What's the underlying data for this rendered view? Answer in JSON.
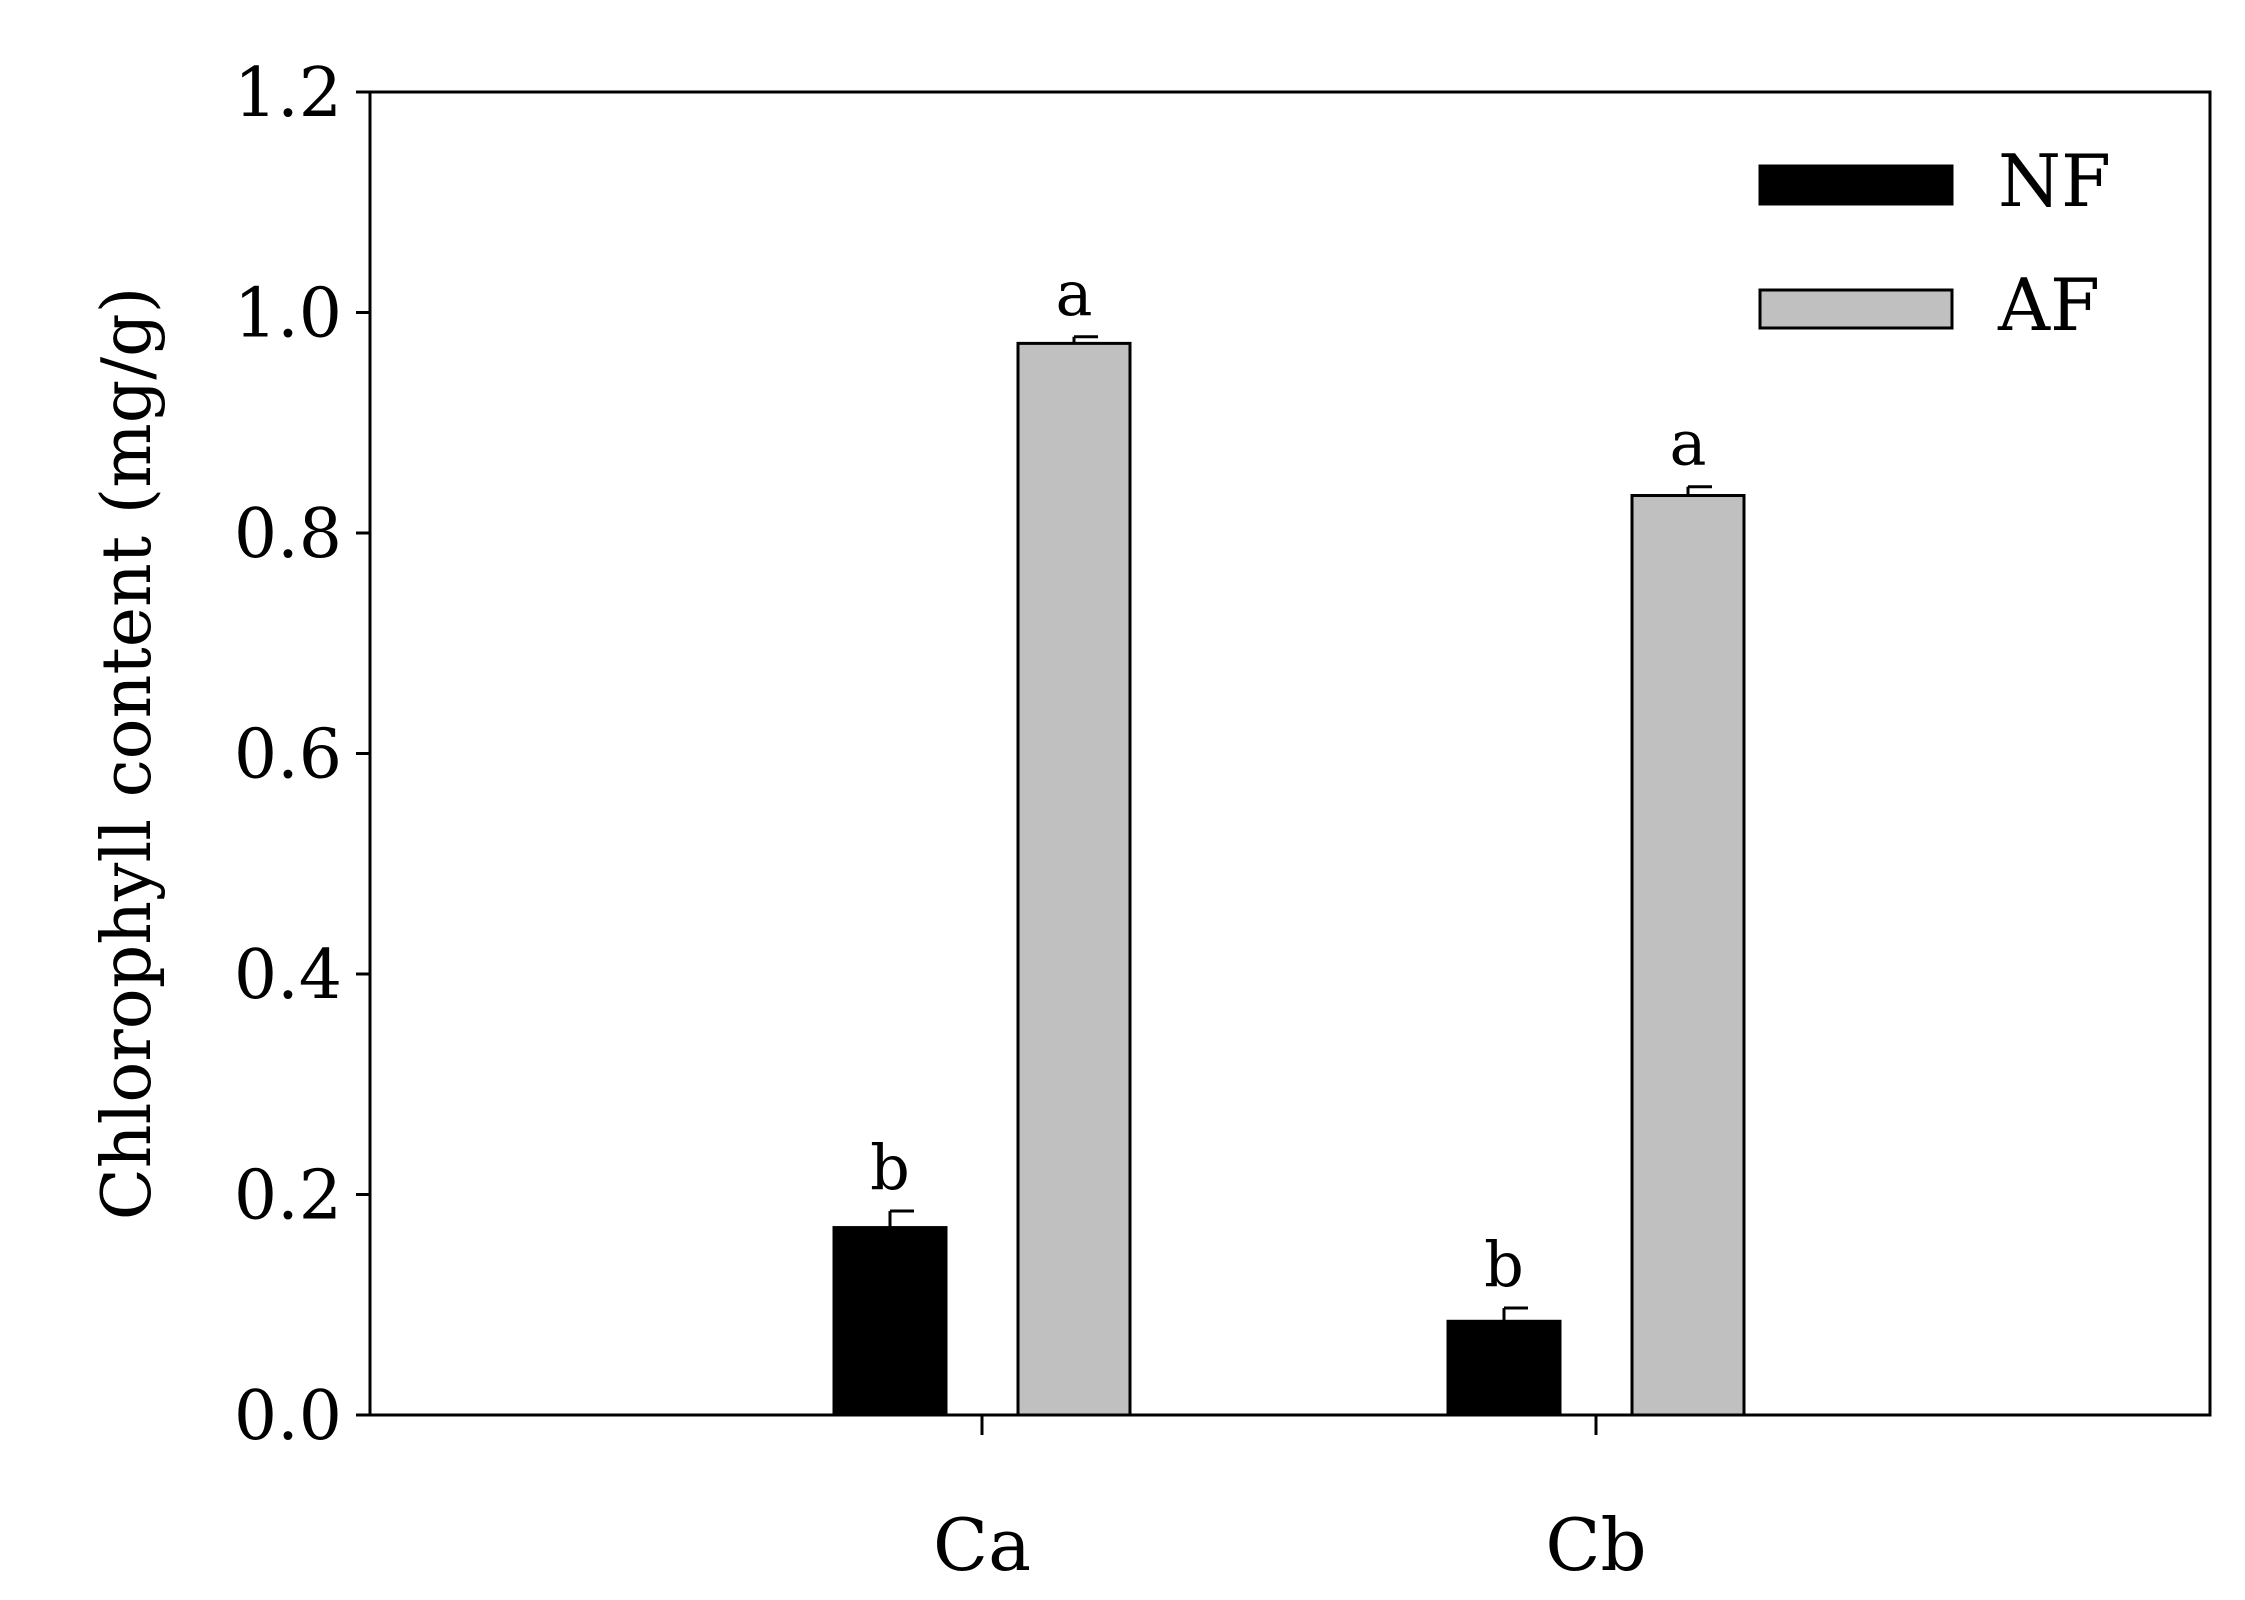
{
  "chart_data": {
    "type": "bar",
    "categories": [
      "Ca",
      "Cb"
    ],
    "series": [
      {
        "name": "NF",
        "color": "#000000",
        "values": [
          0.17,
          0.085
        ],
        "errors": [
          0.015,
          0.012
        ],
        "labels": [
          "b",
          "b"
        ]
      },
      {
        "name": "AF",
        "color": "#c0c0c0",
        "values": [
          0.972,
          0.834
        ],
        "errors": [
          0.006,
          0.008
        ],
        "labels": [
          "a",
          "a"
        ]
      }
    ],
    "title": "",
    "xlabel": "",
    "ylabel": "Chlorophyll content (mg/g)",
    "ylim": [
      0,
      1.2
    ],
    "yticks": [
      0.0,
      0.2,
      0.4,
      0.6,
      0.8,
      1.0,
      1.2
    ],
    "ytick_labels": [
      "0.0",
      "0.2",
      "0.4",
      "0.6",
      "0.8",
      "1.0",
      "1.2"
    ],
    "grid": false,
    "legend_position": "top-right",
    "error_bars": "upper"
  }
}
